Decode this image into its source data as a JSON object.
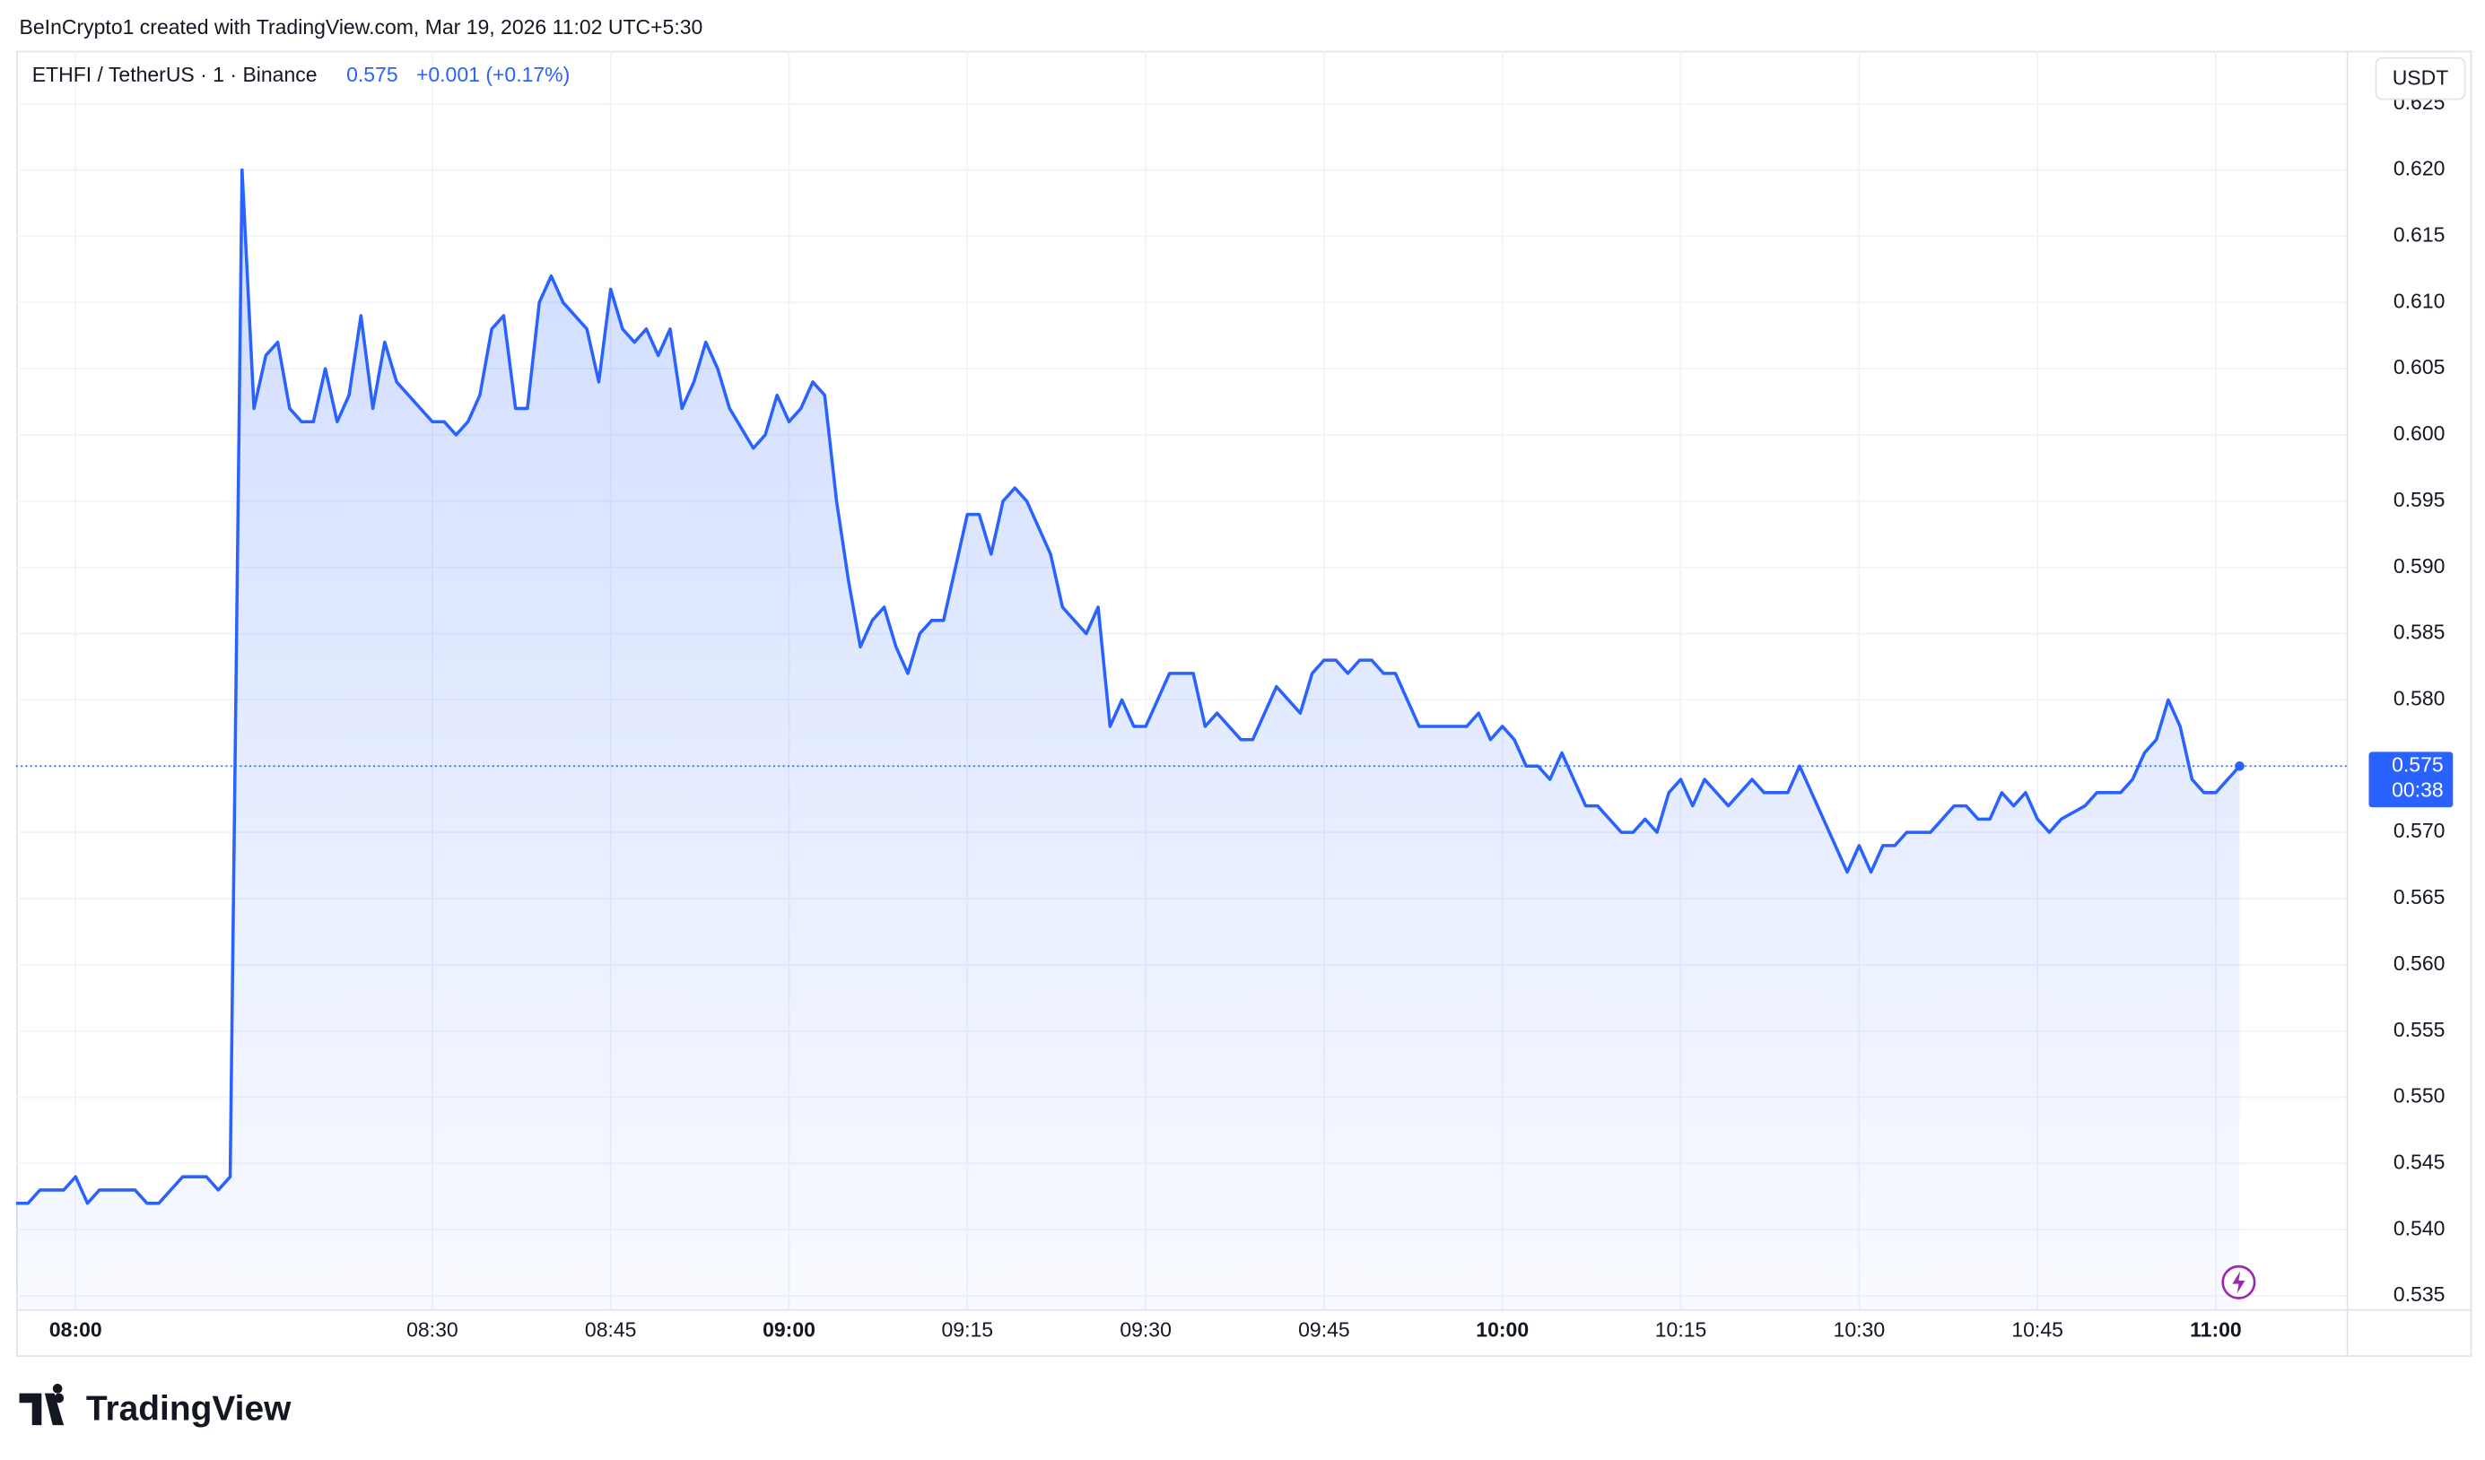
{
  "header": "BeInCrypto1 created with TradingView.com, Mar 19, 2026 11:02 UTC+5:30",
  "logo": "TradingView",
  "chart_data": {
    "type": "area-line",
    "title": "ETHFI / TetherUS · 1 · Binance",
    "last_value": 0.575,
    "change": "+0.001 (+0.17%)",
    "countdown": "00:38",
    "y_unit": "USDT",
    "color": "#2962ff",
    "grid": true,
    "x": [
      "07:55",
      "07:56",
      "07:57",
      "07:59",
      "08:00",
      "08:01",
      "08:02",
      "08:05",
      "08:06",
      "08:07",
      "08:09",
      "08:11",
      "08:12",
      "08:13",
      "08:14",
      "08:15",
      "08:16",
      "08:17",
      "08:18",
      "08:19",
      "08:20",
      "08:21",
      "08:22",
      "08:23",
      "08:24",
      "08:25",
      "08:26",
      "08:27",
      "08:29",
      "08:30",
      "08:31",
      "08:32",
      "08:33",
      "08:34",
      "08:35",
      "08:36",
      "08:37",
      "08:38",
      "08:39",
      "08:40",
      "08:41",
      "08:42",
      "08:43",
      "08:44",
      "08:45",
      "08:46",
      "08:47",
      "08:48",
      "08:49",
      "08:50",
      "08:51",
      "08:52",
      "08:53",
      "08:54",
      "08:55",
      "08:57",
      "08:58",
      "08:59",
      "09:00",
      "09:01",
      "09:02",
      "09:03",
      "09:04",
      "09:05",
      "09:06",
      "09:07",
      "09:08",
      "09:09",
      "09:10",
      "09:11",
      "09:12",
      "09:13",
      "09:14",
      "09:15",
      "09:16",
      "09:17",
      "09:18",
      "09:19",
      "09:20",
      "09:21",
      "09:22",
      "09:23",
      "09:25",
      "09:26",
      "09:27",
      "09:28",
      "09:29",
      "09:30",
      "09:31",
      "09:32",
      "09:34",
      "09:35",
      "09:36",
      "09:37",
      "09:38",
      "09:39",
      "09:40",
      "09:41",
      "09:42",
      "09:43",
      "09:44",
      "09:45",
      "09:46",
      "09:47",
      "09:48",
      "09:49",
      "09:50",
      "09:51",
      "09:53",
      "09:57",
      "09:58",
      "09:59",
      "10:00",
      "10:01",
      "10:02",
      "10:03",
      "10:04",
      "10:05",
      "10:06",
      "10:07",
      "10:08",
      "10:09",
      "10:10",
      "10:11",
      "10:12",
      "10:13",
      "10:14",
      "10:15",
      "10:16",
      "10:17",
      "10:18",
      "10:19",
      "10:21",
      "10:22",
      "10:24",
      "10:25",
      "10:26",
      "10:27",
      "10:28",
      "10:29",
      "10:30",
      "10:31",
      "10:32",
      "10:33",
      "10:34",
      "10:36",
      "10:37",
      "10:38",
      "10:39",
      "10:40",
      "10:41",
      "10:42",
      "10:43",
      "10:44",
      "10:45",
      "10:46",
      "10:47",
      "10:49",
      "10:50",
      "10:52",
      "10:53",
      "10:54",
      "10:55",
      "10:56",
      "10:57",
      "10:58",
      "10:59",
      "11:00",
      "11:01",
      "11:02"
    ],
    "values": [
      0.542,
      0.542,
      0.543,
      0.543,
      0.544,
      0.542,
      0.543,
      0.543,
      0.542,
      0.542,
      0.544,
      0.544,
      0.543,
      0.544,
      0.62,
      0.602,
      0.606,
      0.607,
      0.602,
      0.601,
      0.601,
      0.605,
      0.601,
      0.603,
      0.609,
      0.602,
      0.607,
      0.604,
      0.602,
      0.601,
      0.601,
      0.6,
      0.601,
      0.603,
      0.608,
      0.609,
      0.602,
      0.602,
      0.61,
      0.612,
      0.61,
      0.609,
      0.608,
      0.604,
      0.611,
      0.608,
      0.607,
      0.608,
      0.606,
      0.608,
      0.602,
      0.604,
      0.607,
      0.605,
      0.602,
      0.599,
      0.6,
      0.603,
      0.601,
      0.602,
      0.604,
      0.603,
      0.595,
      0.589,
      0.584,
      0.586,
      0.587,
      0.584,
      0.582,
      0.585,
      0.586,
      0.586,
      0.59,
      0.594,
      0.594,
      0.591,
      0.595,
      0.596,
      0.595,
      0.593,
      0.591,
      0.587,
      0.585,
      0.587,
      0.578,
      0.58,
      0.578,
      0.578,
      0.58,
      0.582,
      0.582,
      0.578,
      0.579,
      0.578,
      0.577,
      0.577,
      0.579,
      0.581,
      0.58,
      0.579,
      0.582,
      0.583,
      0.583,
      0.582,
      0.583,
      0.583,
      0.582,
      0.582,
      0.578,
      0.578,
      0.579,
      0.577,
      0.578,
      0.577,
      0.575,
      0.575,
      0.574,
      0.576,
      0.574,
      0.572,
      0.572,
      0.571,
      0.57,
      0.57,
      0.571,
      0.57,
      0.573,
      0.574,
      0.572,
      0.574,
      0.573,
      0.572,
      0.574,
      0.573,
      0.573,
      0.575,
      0.573,
      0.571,
      0.569,
      0.567,
      0.569,
      0.567,
      0.569,
      0.569,
      0.57,
      0.57,
      0.571,
      0.572,
      0.572,
      0.571,
      0.571,
      0.573,
      0.572,
      0.573,
      0.571,
      0.57,
      0.571,
      0.572,
      0.573,
      0.573,
      0.574,
      0.576,
      0.577,
      0.58,
      0.578,
      0.574,
      0.573,
      0.573,
      0.574,
      0.575
    ],
    "xlim": [
      "07:55",
      "11:11"
    ],
    "xticks": [
      "08:00",
      "08:30",
      "08:45",
      "09:00",
      "09:15",
      "09:30",
      "09:45",
      "10:00",
      "10:15",
      "10:30",
      "10:45",
      "11:00"
    ],
    "ylim": [
      0.534,
      0.629
    ],
    "yticks": [
      0.535,
      {
        "value": 0.54,
        "label": "0.540"
      },
      0.545,
      {
        "value": 0.55,
        "label": "0.550"
      },
      0.555,
      {
        "value": 0.56,
        "label": "0.560"
      },
      0.565,
      {
        "value": 0.57,
        "label": "0.570"
      },
      0.575,
      {
        "value": 0.58,
        "label": "0.580"
      },
      0.585,
      {
        "value": 0.59,
        "label": "0.590"
      },
      0.595,
      {
        "value": 0.6,
        "label": "0.600"
      },
      0.605,
      {
        "value": 0.61,
        "label": "0.610"
      },
      0.615,
      {
        "value": 0.62,
        "label": "0.620"
      },
      0.625
    ]
  }
}
